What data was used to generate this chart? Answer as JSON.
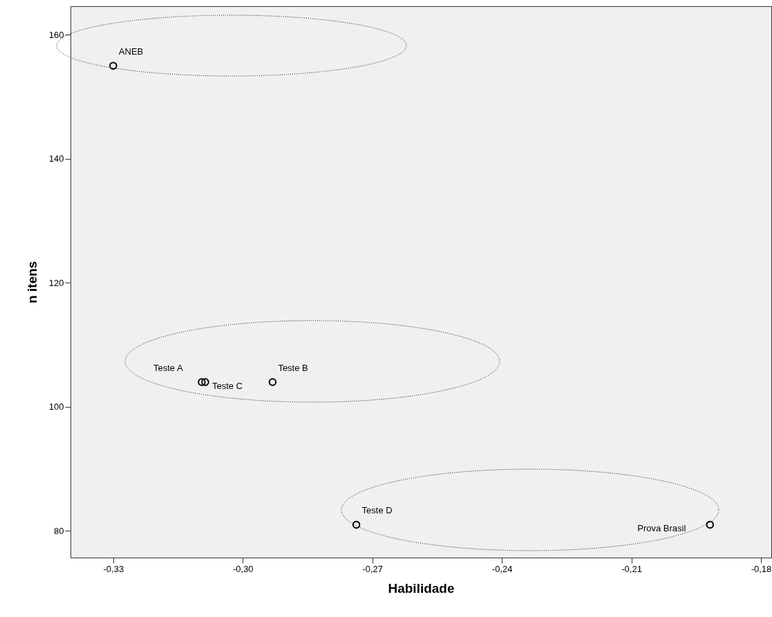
{
  "chart_data": {
    "type": "scatter",
    "xlabel": "Habilidade",
    "ylabel": "n itens",
    "x": [
      -0.33,
      -0.3095,
      -0.3087,
      -0.2931,
      -0.2737,
      -0.1918
    ],
    "values": [
      155,
      104,
      104,
      104,
      81,
      81
    ],
    "color": "#000000",
    "marker": "circle",
    "grid": false,
    "xlim": [
      -0.3399,
      -0.1776
    ],
    "ylim": [
      75.7,
      164.6
    ],
    "xticks": [
      {
        "value": -0.33,
        "label": "-0,33"
      },
      {
        "value": -0.3,
        "label": "-0,30"
      },
      {
        "value": -0.27,
        "label": "-0,27"
      },
      {
        "value": -0.24,
        "label": "-0,24"
      },
      {
        "value": -0.21,
        "label": "-0,21"
      },
      {
        "value": -0.18,
        "label": "-0,18"
      }
    ],
    "yticks": [
      80,
      100,
      120,
      140,
      160
    ],
    "annotations": [
      {
        "text": "ANEB",
        "x": -0.33,
        "y": 155
      },
      {
        "text": "Teste A",
        "x": -0.3095,
        "y": 104
      },
      {
        "text": "Teste C",
        "x": -0.3087,
        "y": 104
      },
      {
        "text": "Teste B",
        "x": -0.2931,
        "y": 104
      },
      {
        "text": "Teste D",
        "x": -0.2737,
        "y": 81
      },
      {
        "text": "Prova Brasil",
        "x": -0.1918,
        "y": 81
      }
    ]
  }
}
